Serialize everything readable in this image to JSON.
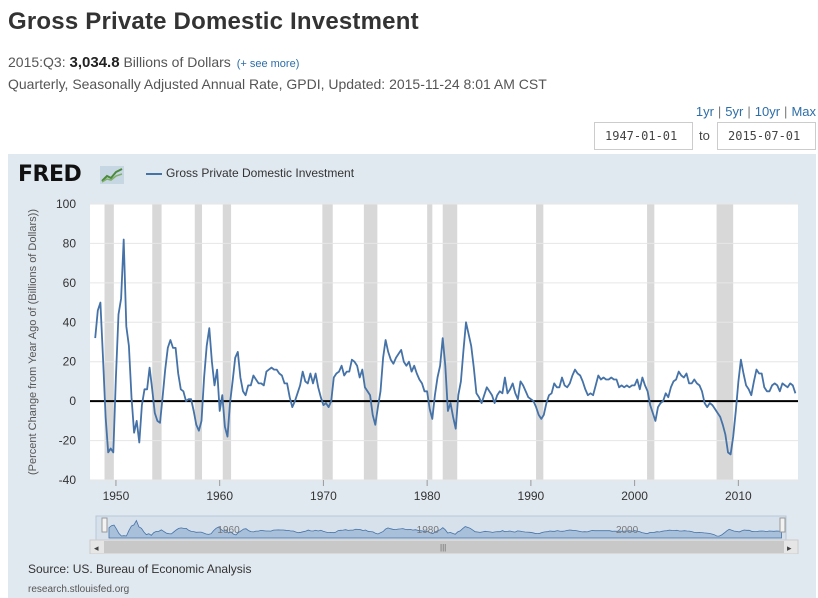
{
  "header": {
    "title": "Gross Private Domestic Investment",
    "period": "2015:Q3:",
    "value": "3,034.8",
    "units": "Billions of Dollars",
    "see_more": "(+ see more)",
    "meta": "Quarterly, Seasonally Adjusted Annual Rate, GPDI, Updated: 2015-11-24 8:01 AM CST"
  },
  "ranges": [
    "1yr",
    "5yr",
    "10yr",
    "Max"
  ],
  "date_range": {
    "start": "1947-01-01",
    "to_label": "to",
    "end": "2015-07-01"
  },
  "logo_text": "FRED",
  "legend_label": "Gross Private Domestic Investment",
  "source": "Source: US. Bureau of Economic Analysis",
  "site": "research.stlouisfed.org",
  "navigator": {
    "labels": [
      "1960",
      "1980",
      "2000"
    ]
  },
  "colors": {
    "series": "#4572a7",
    "recession": "#d8d8d8",
    "panel": "#e1e9f0"
  },
  "chart_data": {
    "type": "line",
    "title": "Gross Private Domestic Investment",
    "ylabel": "(Percent Change from Year Ago of (Billions of Dollars))",
    "xlabel": "",
    "ylim": [
      -40,
      100
    ],
    "xlim": [
      1947.5,
      2015.75
    ],
    "yticks": [
      -40,
      -20,
      0,
      20,
      40,
      60,
      80,
      100
    ],
    "xticks": [
      1950,
      1960,
      1970,
      1980,
      1990,
      2000,
      2010
    ],
    "recessions": [
      [
        1948.9,
        1949.8
      ],
      [
        1953.5,
        1954.4
      ],
      [
        1957.6,
        1958.3
      ],
      [
        1960.3,
        1961.1
      ],
      [
        1969.9,
        1970.9
      ],
      [
        1973.9,
        1975.2
      ],
      [
        1980.0,
        1980.5
      ],
      [
        1981.5,
        1982.9
      ],
      [
        1990.5,
        1991.2
      ],
      [
        2001.2,
        2001.9
      ],
      [
        2007.9,
        2009.5
      ]
    ],
    "series": [
      {
        "name": "Gross Private Domestic Investment",
        "points": [
          [
            1948.0,
            32
          ],
          [
            1948.25,
            46
          ],
          [
            1948.5,
            50
          ],
          [
            1948.75,
            22
          ],
          [
            1949.0,
            -8
          ],
          [
            1949.25,
            -26
          ],
          [
            1949.5,
            -24
          ],
          [
            1949.75,
            -26
          ],
          [
            1950.0,
            12
          ],
          [
            1950.25,
            44
          ],
          [
            1950.5,
            52
          ],
          [
            1950.75,
            82
          ],
          [
            1951.0,
            38
          ],
          [
            1951.25,
            28
          ],
          [
            1951.5,
            2
          ],
          [
            1951.75,
            -16
          ],
          [
            1952.0,
            -10
          ],
          [
            1952.25,
            -21
          ],
          [
            1952.5,
            -2
          ],
          [
            1952.75,
            6
          ],
          [
            1953.0,
            6
          ],
          [
            1953.25,
            17
          ],
          [
            1953.5,
            6
          ],
          [
            1953.75,
            -6
          ],
          [
            1954.0,
            -10
          ],
          [
            1954.25,
            -11
          ],
          [
            1954.5,
            2
          ],
          [
            1954.75,
            16
          ],
          [
            1955.0,
            27
          ],
          [
            1955.25,
            31
          ],
          [
            1955.5,
            27
          ],
          [
            1955.75,
            27
          ],
          [
            1956.0,
            14
          ],
          [
            1956.25,
            6
          ],
          [
            1956.5,
            5
          ],
          [
            1956.75,
            0
          ],
          [
            1957.0,
            1
          ],
          [
            1957.25,
            1
          ],
          [
            1957.5,
            -5
          ],
          [
            1957.75,
            -12
          ],
          [
            1958.0,
            -15
          ],
          [
            1958.25,
            -10
          ],
          [
            1958.5,
            12
          ],
          [
            1958.75,
            28
          ],
          [
            1959.0,
            37
          ],
          [
            1959.25,
            20
          ],
          [
            1959.5,
            8
          ],
          [
            1959.75,
            16
          ],
          [
            1960.0,
            -5
          ],
          [
            1960.25,
            3
          ],
          [
            1960.5,
            -13
          ],
          [
            1960.75,
            -18
          ],
          [
            1961.0,
            -1
          ],
          [
            1961.25,
            10
          ],
          [
            1961.5,
            22
          ],
          [
            1961.75,
            25
          ],
          [
            1962.0,
            12
          ],
          [
            1962.25,
            5
          ],
          [
            1962.5,
            3
          ],
          [
            1962.75,
            8
          ],
          [
            1963.0,
            8
          ],
          [
            1963.25,
            13
          ],
          [
            1963.5,
            11
          ],
          [
            1963.75,
            9
          ],
          [
            1964.0,
            9
          ],
          [
            1964.25,
            8
          ],
          [
            1964.5,
            15
          ],
          [
            1964.75,
            16
          ],
          [
            1965.0,
            17
          ],
          [
            1965.25,
            16
          ],
          [
            1965.5,
            16
          ],
          [
            1965.75,
            14
          ],
          [
            1966.0,
            13
          ],
          [
            1966.25,
            9
          ],
          [
            1966.5,
            9
          ],
          [
            1966.75,
            2
          ],
          [
            1967.0,
            -3
          ],
          [
            1967.25,
            0
          ],
          [
            1967.5,
            4
          ],
          [
            1967.75,
            8
          ],
          [
            1968.0,
            15
          ],
          [
            1968.25,
            10
          ],
          [
            1968.5,
            9
          ],
          [
            1968.75,
            14
          ],
          [
            1969.0,
            9
          ],
          [
            1969.25,
            14
          ],
          [
            1969.5,
            7
          ],
          [
            1969.75,
            2
          ],
          [
            1970.0,
            -2
          ],
          [
            1970.25,
            -1
          ],
          [
            1970.5,
            -3
          ],
          [
            1970.75,
            0
          ],
          [
            1971.0,
            12
          ],
          [
            1971.25,
            14
          ],
          [
            1971.5,
            15
          ],
          [
            1971.75,
            18
          ],
          [
            1972.0,
            13
          ],
          [
            1972.25,
            15
          ],
          [
            1972.5,
            15
          ],
          [
            1972.75,
            21
          ],
          [
            1973.0,
            20
          ],
          [
            1973.25,
            18
          ],
          [
            1973.5,
            12
          ],
          [
            1973.75,
            16
          ],
          [
            1974.0,
            7
          ],
          [
            1974.25,
            5
          ],
          [
            1974.5,
            3
          ],
          [
            1974.75,
            -7
          ],
          [
            1975.0,
            -12
          ],
          [
            1975.25,
            -3
          ],
          [
            1975.5,
            5
          ],
          [
            1975.75,
            22
          ],
          [
            1976.0,
            31
          ],
          [
            1976.25,
            25
          ],
          [
            1976.5,
            21
          ],
          [
            1976.75,
            19
          ],
          [
            1977.0,
            22
          ],
          [
            1977.25,
            24
          ],
          [
            1977.5,
            26
          ],
          [
            1977.75,
            20
          ],
          [
            1978.0,
            18
          ],
          [
            1978.25,
            20
          ],
          [
            1978.5,
            15
          ],
          [
            1978.75,
            18
          ],
          [
            1979.0,
            14
          ],
          [
            1979.25,
            11
          ],
          [
            1979.5,
            9
          ],
          [
            1979.75,
            5
          ],
          [
            1980.0,
            5
          ],
          [
            1980.25,
            -4
          ],
          [
            1980.5,
            -9
          ],
          [
            1980.75,
            3
          ],
          [
            1981.0,
            12
          ],
          [
            1981.25,
            18
          ],
          [
            1981.5,
            32
          ],
          [
            1981.75,
            18
          ],
          [
            1982.0,
            -5
          ],
          [
            1982.25,
            -1
          ],
          [
            1982.5,
            -8
          ],
          [
            1982.75,
            -14
          ],
          [
            1983.0,
            3
          ],
          [
            1983.25,
            10
          ],
          [
            1983.5,
            26
          ],
          [
            1983.75,
            40
          ],
          [
            1984.0,
            34
          ],
          [
            1984.25,
            28
          ],
          [
            1984.5,
            17
          ],
          [
            1984.75,
            4
          ],
          [
            1985.0,
            2
          ],
          [
            1985.25,
            -1
          ],
          [
            1985.5,
            3
          ],
          [
            1985.75,
            7
          ],
          [
            1986.0,
            5
          ],
          [
            1986.25,
            3
          ],
          [
            1986.5,
            -1
          ],
          [
            1986.75,
            3
          ],
          [
            1987.0,
            5
          ],
          [
            1987.25,
            4
          ],
          [
            1987.5,
            12
          ],
          [
            1987.75,
            4
          ],
          [
            1988.0,
            6
          ],
          [
            1988.25,
            9
          ],
          [
            1988.5,
            4
          ],
          [
            1988.75,
            1
          ],
          [
            1989.0,
            10
          ],
          [
            1989.25,
            8
          ],
          [
            1989.5,
            5
          ],
          [
            1989.75,
            2
          ],
          [
            1990.0,
            1
          ],
          [
            1990.25,
            0
          ],
          [
            1990.5,
            -3
          ],
          [
            1990.75,
            -7
          ],
          [
            1991.0,
            -9
          ],
          [
            1991.25,
            -7
          ],
          [
            1991.5,
            -1
          ],
          [
            1991.75,
            3
          ],
          [
            1992.0,
            4
          ],
          [
            1992.25,
            9
          ],
          [
            1992.5,
            7
          ],
          [
            1992.75,
            7
          ],
          [
            1993.0,
            12
          ],
          [
            1993.25,
            8
          ],
          [
            1993.5,
            7
          ],
          [
            1993.75,
            9
          ],
          [
            1994.0,
            13
          ],
          [
            1994.25,
            16
          ],
          [
            1994.5,
            14
          ],
          [
            1994.75,
            13
          ],
          [
            1995.0,
            10
          ],
          [
            1995.25,
            6
          ],
          [
            1995.5,
            3
          ],
          [
            1995.75,
            4
          ],
          [
            1996.0,
            3
          ],
          [
            1996.25,
            8
          ],
          [
            1996.5,
            13
          ],
          [
            1996.75,
            11
          ],
          [
            1997.0,
            12
          ],
          [
            1997.25,
            11
          ],
          [
            1997.5,
            11
          ],
          [
            1997.75,
            12
          ],
          [
            1998.0,
            11
          ],
          [
            1998.25,
            11
          ],
          [
            1998.5,
            7
          ],
          [
            1998.75,
            8
          ],
          [
            1999.0,
            7
          ],
          [
            1999.25,
            8
          ],
          [
            1999.5,
            7
          ],
          [
            1999.75,
            8
          ],
          [
            2000.0,
            8
          ],
          [
            2000.25,
            11
          ],
          [
            2000.5,
            6
          ],
          [
            2000.75,
            12
          ],
          [
            2001.0,
            8
          ],
          [
            2001.25,
            5
          ],
          [
            2001.5,
            -2
          ],
          [
            2001.75,
            -6
          ],
          [
            2002.0,
            -10
          ],
          [
            2002.25,
            -3
          ],
          [
            2002.5,
            -1
          ],
          [
            2002.75,
            0
          ],
          [
            2003.0,
            4
          ],
          [
            2003.25,
            2
          ],
          [
            2003.5,
            7
          ],
          [
            2003.75,
            10
          ],
          [
            2004.0,
            11
          ],
          [
            2004.25,
            15
          ],
          [
            2004.5,
            13
          ],
          [
            2004.75,
            12
          ],
          [
            2005.0,
            14
          ],
          [
            2005.25,
            9
          ],
          [
            2005.5,
            9
          ],
          [
            2005.75,
            11
          ],
          [
            2006.0,
            9
          ],
          [
            2006.25,
            8
          ],
          [
            2006.5,
            5
          ],
          [
            2006.75,
            -1
          ],
          [
            2007.0,
            -3
          ],
          [
            2007.25,
            -1
          ],
          [
            2007.5,
            -2
          ],
          [
            2007.75,
            -4
          ],
          [
            2008.0,
            -6
          ],
          [
            2008.25,
            -8
          ],
          [
            2008.5,
            -12
          ],
          [
            2008.75,
            -17
          ],
          [
            2009.0,
            -26
          ],
          [
            2009.25,
            -27
          ],
          [
            2009.5,
            -18
          ],
          [
            2009.75,
            -5
          ],
          [
            2010.0,
            10
          ],
          [
            2010.25,
            21
          ],
          [
            2010.5,
            14
          ],
          [
            2010.75,
            8
          ],
          [
            2011.0,
            6
          ],
          [
            2011.25,
            3
          ],
          [
            2011.5,
            10
          ],
          [
            2011.75,
            16
          ],
          [
            2012.0,
            14
          ],
          [
            2012.25,
            14
          ],
          [
            2012.5,
            7
          ],
          [
            2012.75,
            5
          ],
          [
            2013.0,
            5
          ],
          [
            2013.25,
            8
          ],
          [
            2013.5,
            9
          ],
          [
            2013.75,
            8
          ],
          [
            2014.0,
            5
          ],
          [
            2014.25,
            9
          ],
          [
            2014.5,
            8
          ],
          [
            2014.75,
            7
          ],
          [
            2015.0,
            9
          ],
          [
            2015.25,
            8
          ],
          [
            2015.5,
            4
          ]
        ]
      }
    ]
  }
}
